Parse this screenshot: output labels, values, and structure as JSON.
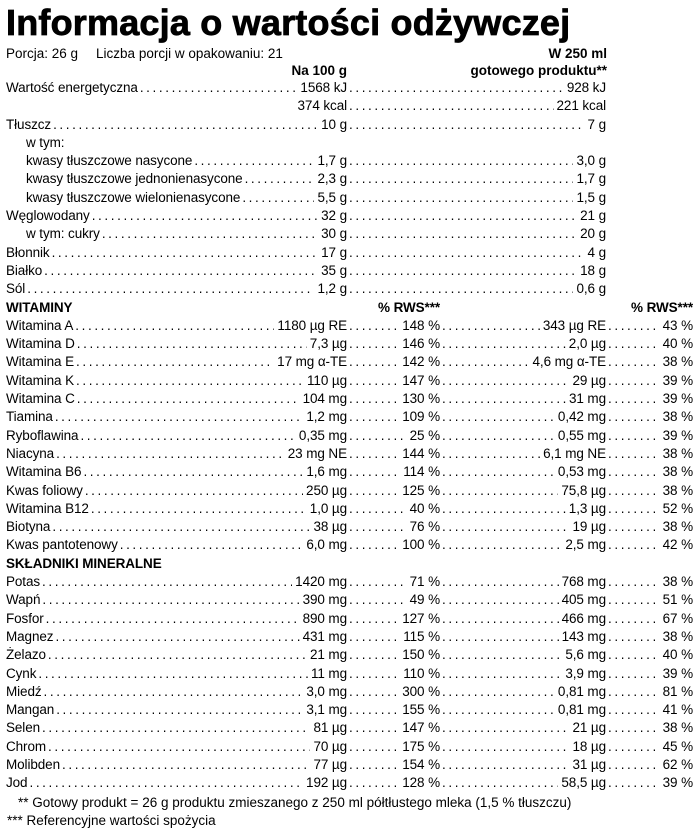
{
  "page": {
    "title": "Informacja o wartości odżywczej",
    "serving": {
      "portion": "Porcja: 26 g",
      "servings_per_pack": "Liczba porcji w opakowaniu: 21"
    },
    "columns": {
      "per_100g": "Na 100 g",
      "per_250ml_line1": "W 250 ml",
      "per_250ml_line2": "gotowego produktu**",
      "rws": "% RWS***"
    }
  },
  "table": {
    "rows": [
      {
        "type": "simple",
        "label": "Wartość energetyczna",
        "v100": "1568 kJ",
        "v250": "928 kJ"
      },
      {
        "type": "simple",
        "label": "",
        "noDots1": true,
        "v100": "374 kcal",
        "v250": "221 kcal"
      },
      {
        "type": "simple",
        "label": "Tłuszcz",
        "v100": "10 g",
        "v250": "7 g"
      },
      {
        "type": "plain",
        "label": "w tym:",
        "indent": 1
      },
      {
        "type": "simple",
        "label": "kwasy tłuszczowe nasycone",
        "indent": 1,
        "v100": "1,7 g",
        "v250": "3,0 g"
      },
      {
        "type": "simple",
        "label": "kwasy tłuszczowe jednonienasycone",
        "indent": 1,
        "v100": "2,3 g",
        "v250": "1,7 g"
      },
      {
        "type": "simple",
        "label": "kwasy tłuszczowe wielonienasycone",
        "indent": 1,
        "v100": "5,5 g",
        "v250": "1,5 g"
      },
      {
        "type": "simple",
        "label": "Węglowodany",
        "v100": "32 g",
        "v250": "21 g"
      },
      {
        "type": "simple",
        "label": "w tym: cukry",
        "indent": 1,
        "v100": "30 g",
        "v250": "20 g"
      },
      {
        "type": "simple",
        "label": "Błonnik",
        "v100": "17 g",
        "v250": "4 g"
      },
      {
        "type": "simple",
        "label": "Białko",
        "v100": "35 g",
        "v250": "18 g"
      },
      {
        "type": "simple",
        "label": "Sól",
        "v100": "1,2 g",
        "v250": "0,6 g"
      },
      {
        "type": "section-rws",
        "label": "WITAMINY"
      },
      {
        "type": "full",
        "label": "Witamina A",
        "v100": "1180 µg RE",
        "rws100": "148 %",
        "v250": "343 µg RE",
        "rws250": "43 %"
      },
      {
        "type": "full",
        "label": "Witamina D",
        "v100": "7,3 µg",
        "rws100": "146 %",
        "v250": "2,0 µg",
        "rws250": "40 %"
      },
      {
        "type": "full",
        "label": "Witamina E",
        "v100": "17 mg α-TE",
        "rws100": "142 %",
        "v250": "4,6 mg α-TE",
        "rws250": "38 %"
      },
      {
        "type": "full",
        "label": "Witamina K",
        "v100": "110 µg",
        "rws100": "147 %",
        "v250": "29 µg",
        "rws250": "39 %"
      },
      {
        "type": "full",
        "label": "Witamina C",
        "v100": "104 mg",
        "rws100": "130 %",
        "v250": "31 mg",
        "rws250": "39 %"
      },
      {
        "type": "full",
        "label": "Tiamina",
        "v100": "1,2 mg",
        "rws100": "109 %",
        "v250": "0,42 mg",
        "rws250": "38 %"
      },
      {
        "type": "full",
        "label": "Ryboflawina",
        "v100": "0,35 mg",
        "rws100": "25 %",
        "v250": "0,55 mg",
        "rws250": "39 %"
      },
      {
        "type": "full",
        "label": "Niacyna",
        "v100": "23 mg NE",
        "rws100": "144 %",
        "v250": "6,1 mg NE",
        "rws250": "38 %"
      },
      {
        "type": "full",
        "label": "Witamina B6",
        "v100": "1,6 mg",
        "rws100": "114 %",
        "v250": "0,53 mg",
        "rws250": "38 %"
      },
      {
        "type": "full",
        "label": "Kwas foliowy",
        "v100": "250 µg",
        "rws100": "125 %",
        "v250": "75,8 µg",
        "rws250": "38 %"
      },
      {
        "type": "full",
        "label": "Witamina B12",
        "v100": "1,0 µg",
        "rws100": "40 %",
        "v250": "1,3 µg",
        "rws250": "52 %"
      },
      {
        "type": "full",
        "label": "Biotyna",
        "v100": "38 µg",
        "rws100": "76 %",
        "v250": "19 µg",
        "rws250": "38 %"
      },
      {
        "type": "full",
        "label": "Kwas pantotenowy",
        "v100": "6,0 mg",
        "rws100": "100 %",
        "v250": "2,5 mg",
        "rws250": "42 %"
      },
      {
        "type": "section",
        "label": "SKŁADNIKI MINERALNE"
      },
      {
        "type": "full",
        "label": "Potas",
        "v100": "1420 mg",
        "rws100": "71 %",
        "v250": "768 mg",
        "rws250": "38 %"
      },
      {
        "type": "full",
        "label": "Wapń",
        "v100": "390 mg",
        "rws100": "49 %",
        "v250": "405 mg",
        "rws250": "51 %"
      },
      {
        "type": "full",
        "label": "Fosfor",
        "v100": "890 mg",
        "rws100": "127 %",
        "v250": "466 mg",
        "rws250": "67 %"
      },
      {
        "type": "full",
        "label": "Magnez",
        "v100": "431 mg",
        "rws100": "115 %",
        "v250": "143 mg",
        "rws250": "38 %"
      },
      {
        "type": "full",
        "label": "Żelazo",
        "v100": "21 mg",
        "rws100": "150 %",
        "v250": "5,6 mg",
        "rws250": "40 %"
      },
      {
        "type": "full",
        "label": "Cynk",
        "v100": "11 mg",
        "rws100": "110 %",
        "v250": "3,9 mg",
        "rws250": "39 %"
      },
      {
        "type": "full",
        "label": "Miedź",
        "v100": "3,0 mg",
        "rws100": "300 %",
        "v250": "0,81 mg",
        "rws250": "81 %"
      },
      {
        "type": "full",
        "label": "Mangan",
        "v100": "3,1 mg",
        "rws100": "155 %",
        "v250": "0,81 mg",
        "rws250": "41 %"
      },
      {
        "type": "full",
        "label": "Selen",
        "v100": "81 µg",
        "rws100": "147 %",
        "v250": "21 µg",
        "rws250": "38 %"
      },
      {
        "type": "full",
        "label": "Chrom",
        "v100": "70 µg",
        "rws100": "175 %",
        "v250": "18 µg",
        "rws250": "45 %"
      },
      {
        "type": "full",
        "label": "Molibden",
        "v100": "77 µg",
        "rws100": "154 %",
        "v250": "31 µg",
        "rws250": "62 %"
      },
      {
        "type": "full",
        "label": "Jod",
        "v100": "192 µg",
        "rws100": "128 %",
        "v250": "58,5 µg",
        "rws250": "39 %"
      }
    ]
  },
  "footnotes": [
    "** Gotowy produkt = 26 g produktu zmieszanego z 250 ml półtłustego mleka (1,5 % tłuszczu)",
    "*** Referencyjne wartości spożycia"
  ]
}
